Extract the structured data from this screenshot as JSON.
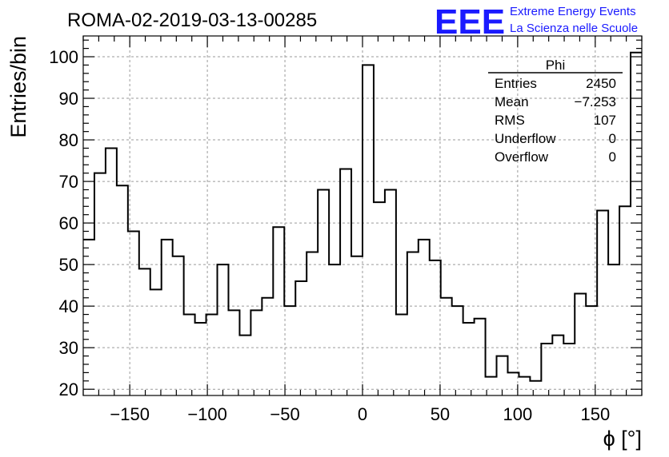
{
  "chart_data": {
    "type": "histogram",
    "title": "ROMA-02-2019-03-13-00285",
    "xlabel": "ϕ [°]",
    "ylabel": "Entries/bin",
    "xlim": [
      -180,
      180
    ],
    "ylim": [
      18.5,
      105
    ],
    "xticks": [
      -150,
      -100,
      -50,
      0,
      50,
      100,
      150
    ],
    "yticks": [
      20,
      30,
      40,
      50,
      60,
      70,
      80,
      90,
      100
    ],
    "grid": true,
    "bin_width": 7.2,
    "bin_edges_start": -180,
    "values": [
      56,
      72,
      78,
      69,
      58,
      49,
      44,
      56,
      52,
      38,
      36,
      38,
      50,
      39,
      33,
      39,
      42,
      59,
      40,
      46,
      53,
      68,
      50,
      73,
      52,
      98,
      65,
      68,
      38,
      53,
      56,
      51,
      42,
      40,
      36,
      37,
      23,
      28,
      24,
      23,
      22,
      31,
      33,
      31,
      43,
      40,
      63,
      50,
      64,
      101
    ]
  },
  "stats_box": {
    "title": "Phi",
    "rows": [
      {
        "label": "Entries",
        "value": "2450"
      },
      {
        "label": "Mean",
        "value": "−7.253"
      },
      {
        "label": "RMS",
        "value": "107"
      },
      {
        "label": "Underflow",
        "value": "0"
      },
      {
        "label": "Overflow",
        "value": "0"
      }
    ]
  },
  "logo": {
    "mark": "EEE",
    "line1": "Extreme Energy Events",
    "line2": "La Scienza nelle Scuole",
    "color": "#1a1aff"
  }
}
